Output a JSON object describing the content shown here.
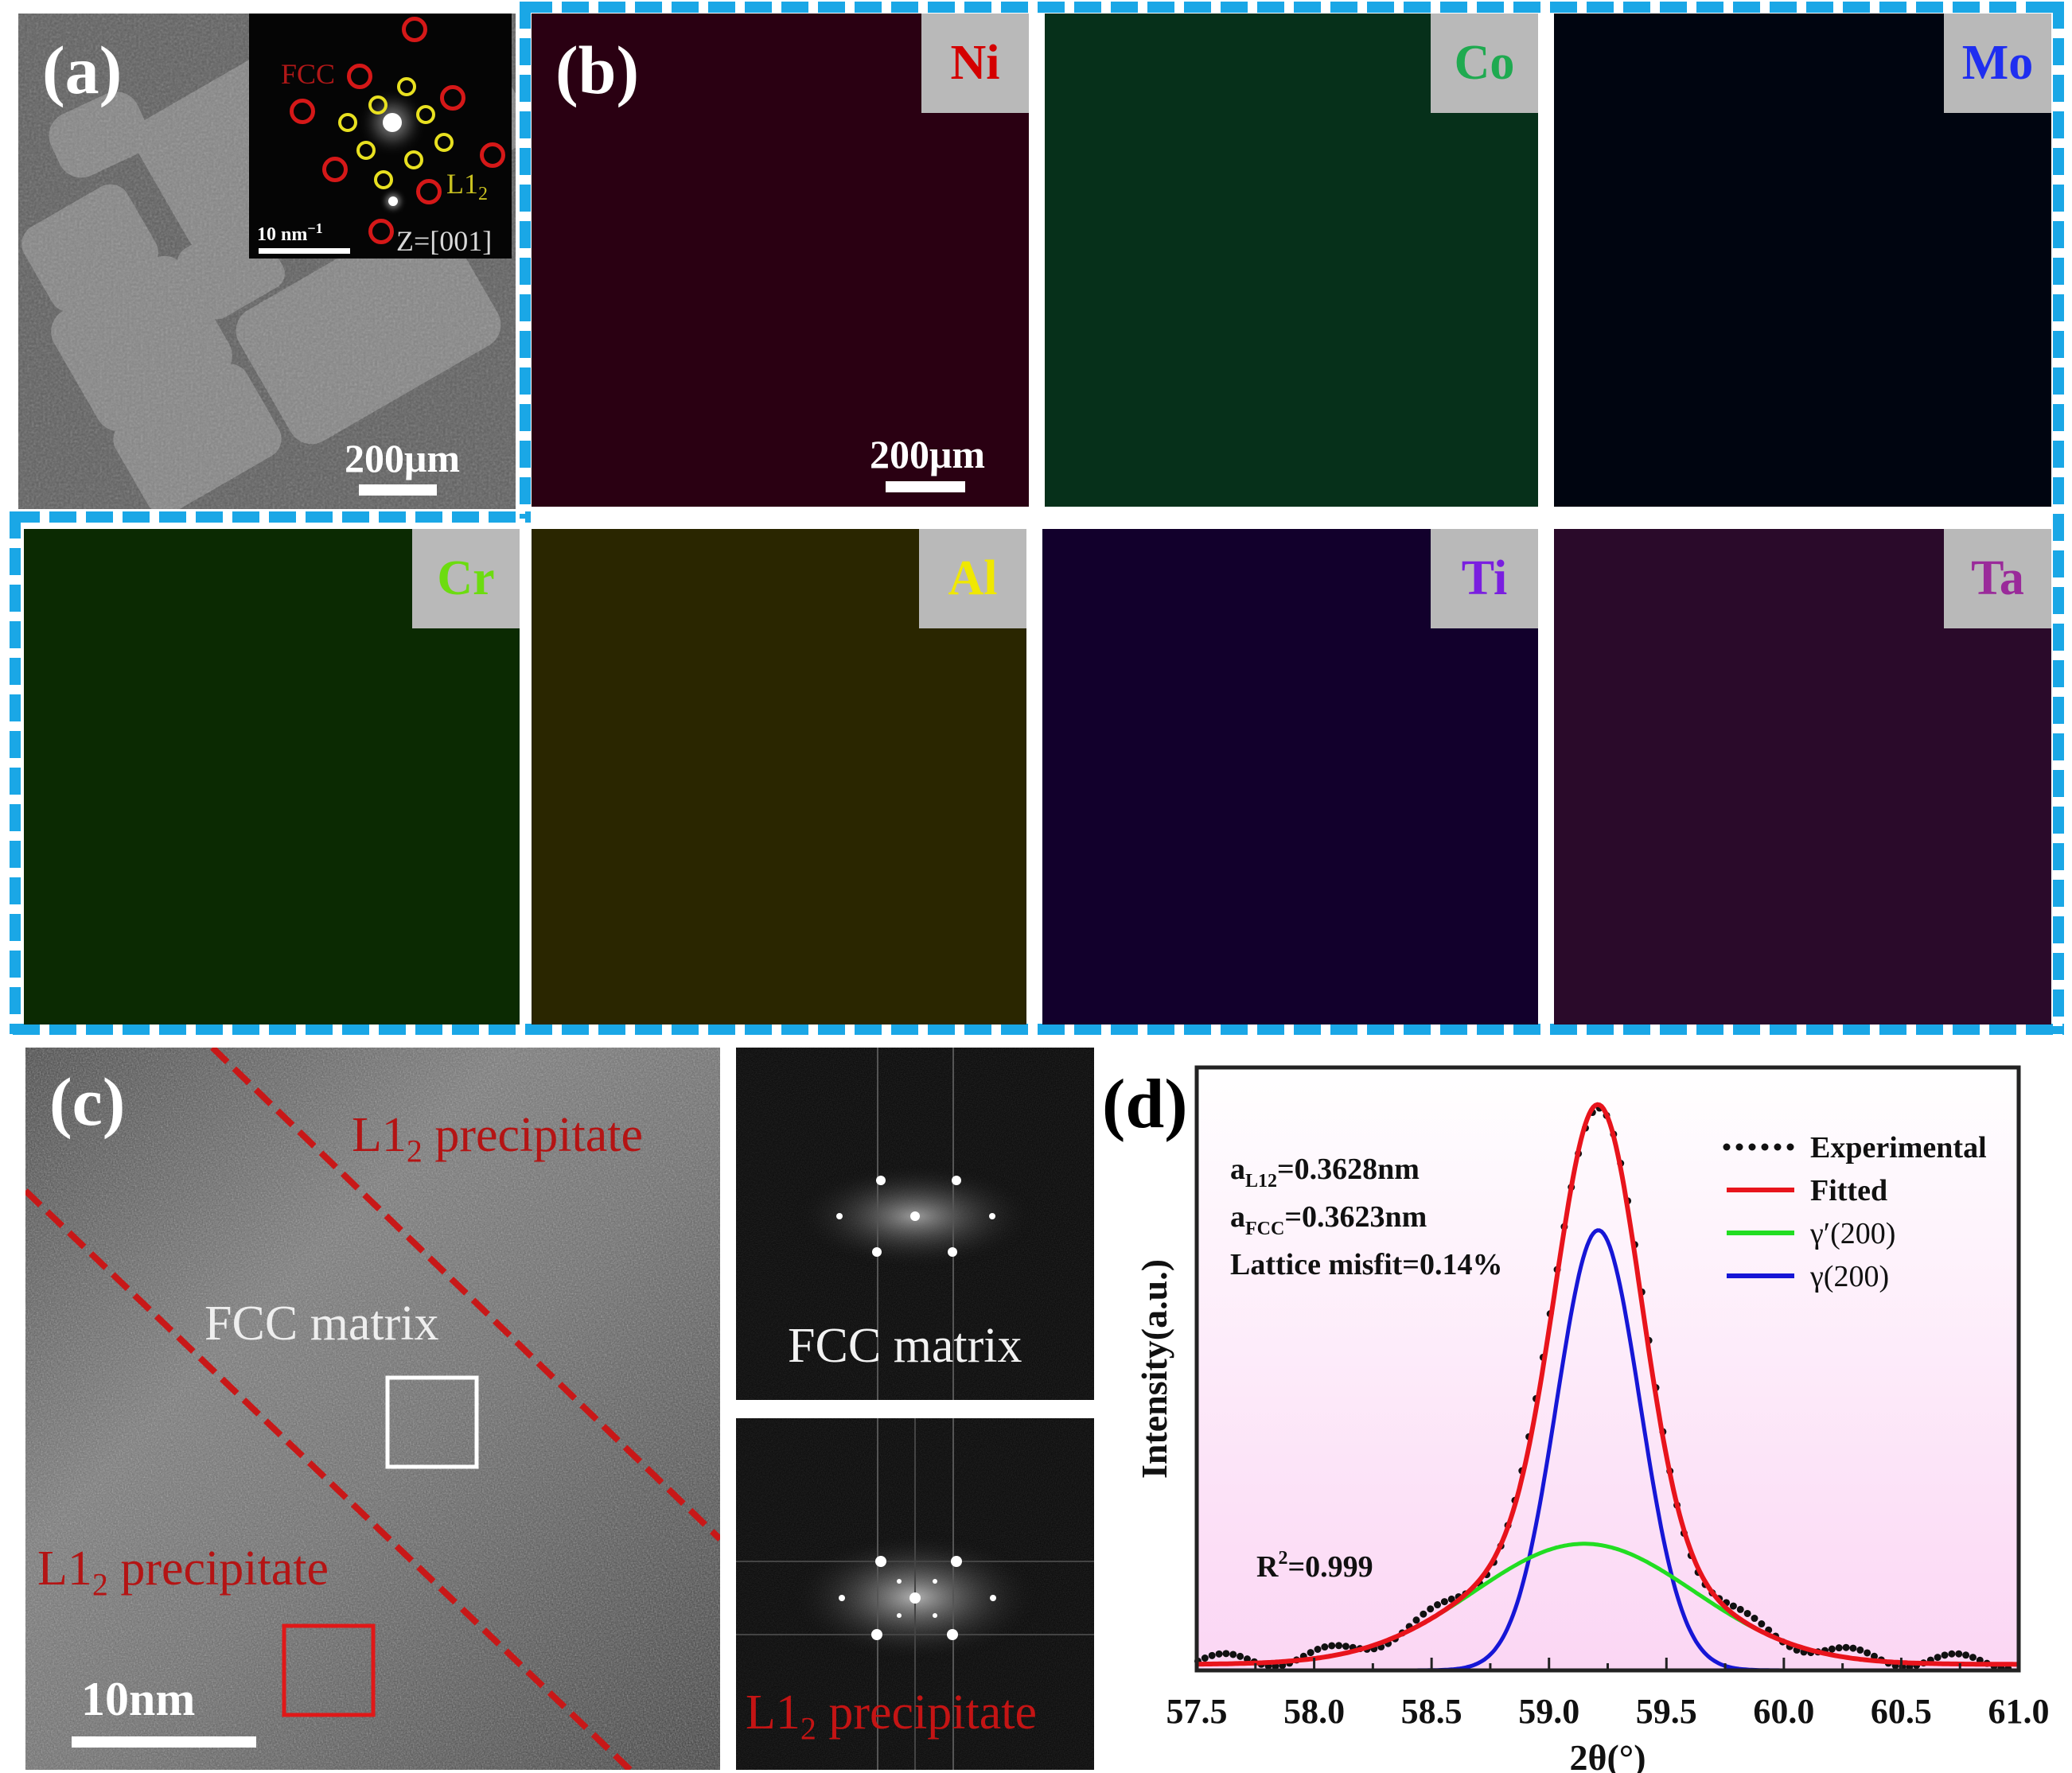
{
  "panel_a": {
    "label": "(a)",
    "scale_bar": "200μm",
    "inset": {
      "fcc_label": "FCC",
      "l12_label": "L1",
      "l12_sub": "2",
      "scale_bar": "10 nm",
      "scale_sup": "−1",
      "zone_axis": "Z=[001]"
    }
  },
  "panel_b": {
    "label": "(b)",
    "scale_bar": "200μm",
    "maps": [
      {
        "element": "Ni",
        "label_color": "#d40000",
        "base": "#2a0012",
        "hi": "#e0186a"
      },
      {
        "element": "Co",
        "label_color": "#1faa50",
        "base": "#06301a",
        "hi": "#21c468"
      },
      {
        "element": "Mo",
        "label_color": "#1f2ef0",
        "base": "#000510",
        "hi": "#1a78e6"
      },
      {
        "element": "Cr",
        "label_color": "#6cdc10",
        "base": "#0b2a02",
        "hi": "#4fd01a"
      },
      {
        "element": "Al",
        "label_color": "#f0e800",
        "base": "#2a2600",
        "hi": "#d8c800"
      },
      {
        "element": "Ti",
        "label_color": "#7a1ee0",
        "base": "#12002c",
        "hi": "#6a10e0"
      },
      {
        "element": "Ta",
        "label_color": "#9a2a9a",
        "base": "#2a0a2a",
        "hi": "#d050d8"
      }
    ]
  },
  "panel_c": {
    "label": "(c)",
    "precipitate_label": "L1",
    "precipitate_sub": "2",
    "precipitate_suffix": " precipitate",
    "matrix_label": "FCC matrix",
    "scale_bar": "10nm",
    "fft_top_label": "FCC matrix",
    "fft_bottom_label": "L1",
    "fft_bottom_sub": "2",
    "fft_bottom_suffix": " precipitate"
  },
  "panel_d": {
    "label": "(d)"
  },
  "colors": {
    "frame_dash": "#1aa7e6",
    "fitted": "#e8141c",
    "gamma_prime": "#22dd22",
    "gamma": "#1616d6",
    "experimental": "#111111",
    "plot_bg_top": "#ffffff",
    "plot_bg_bottom": "#fbd6f4"
  },
  "chart_data": {
    "type": "line",
    "title": "",
    "xlabel": "2θ(°)",
    "ylabel": "Intensity(a.u.)",
    "xlim": [
      57.5,
      61.0
    ],
    "ylim": [
      0,
      1.0
    ],
    "xticks": [
      "57.5",
      "58.0",
      "58.5",
      "59.0",
      "59.5",
      "60.0",
      "60.5",
      "61.0"
    ],
    "grid": false,
    "legend_position": "top-right",
    "annotations": {
      "a_l12": {
        "prefix": "a",
        "sub": "L12",
        "value": "=0.3628nm"
      },
      "a_fcc": {
        "prefix": "a",
        "sub": "FCC",
        "value": "=0.3623nm"
      },
      "misfit": "Lattice misfit=0.14%",
      "r2": {
        "prefix": "R",
        "sup": "2",
        "value": "=0.999"
      }
    },
    "series": [
      {
        "name": "Experimental",
        "style": "dotted-markers",
        "model": {
          "components": [
            "γ(200)",
            "γ′(200)"
          ]
        }
      },
      {
        "name": "Fitted",
        "style": "line",
        "peak_x": 59.21,
        "peak_y": 0.92
      },
      {
        "name": "γ′(200)",
        "style": "line",
        "center": 59.15,
        "amplitude": 0.2,
        "fwhm": 1.1,
        "shape": "gaussian"
      },
      {
        "name": "γ(200)",
        "style": "line",
        "center": 59.21,
        "amplitude": 0.73,
        "fwhm": 0.42,
        "shape": "pseudo-voigt"
      }
    ],
    "baseline": 0.01
  }
}
